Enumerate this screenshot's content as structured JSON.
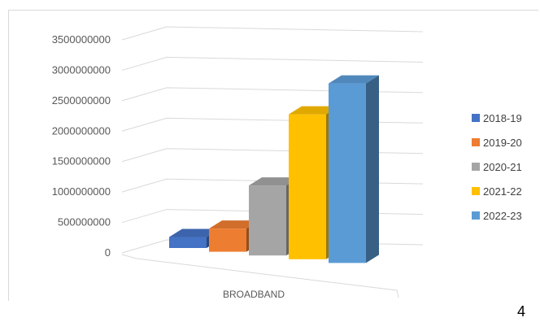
{
  "chart_data": {
    "type": "bar",
    "categories": [
      "BROADBAND"
    ],
    "series": [
      {
        "name": "2018-19",
        "values": [
          180000000
        ],
        "color": "#4472C4"
      },
      {
        "name": "2019-20",
        "values": [
          380000000
        ],
        "color": "#ED7D31"
      },
      {
        "name": "2020-21",
        "values": [
          1150000000
        ],
        "color": "#A5A5A5"
      },
      {
        "name": "2021-22",
        "values": [
          2380000000
        ],
        "color": "#FFC000"
      },
      {
        "name": "2022-23",
        "values": [
          2950000000
        ],
        "color": "#5B9BD5"
      }
    ],
    "y_ticks": [
      "0",
      "500000000",
      "1000000000",
      "1500000000",
      "2000000000",
      "2500000000",
      "3000000000",
      "3500000000"
    ],
    "ylim": [
      0,
      3500000000
    ],
    "style": "3d-clustered-column",
    "grid": true,
    "legend_position": "right"
  },
  "page_number": "4"
}
